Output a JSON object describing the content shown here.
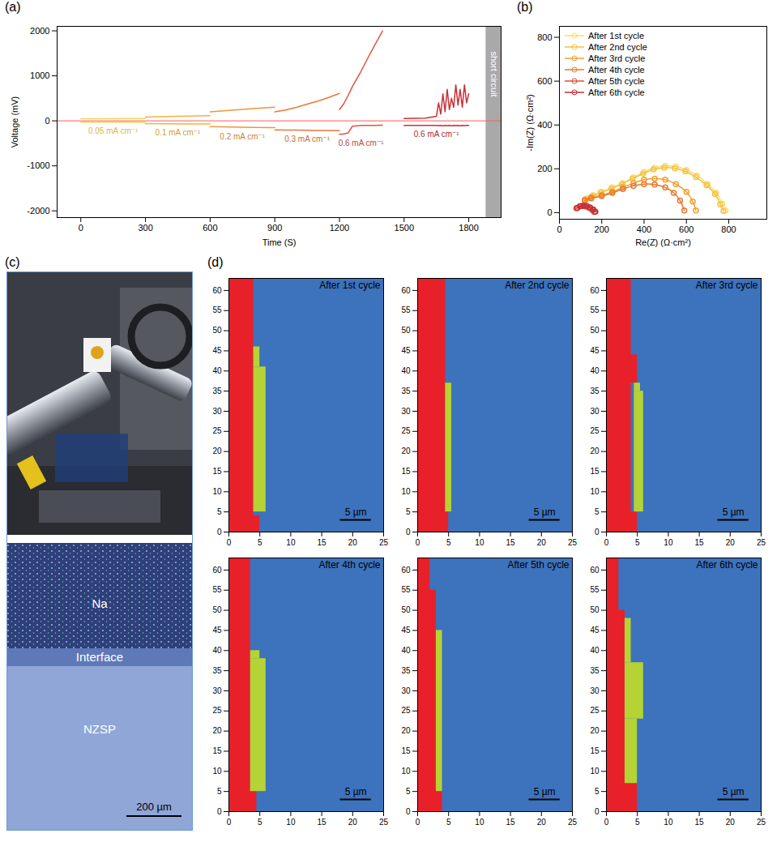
{
  "chart_data": [
    {
      "panel": "(a)",
      "type": "line",
      "x_label": "Time (S)",
      "y_label": "Voltage (mV)",
      "xlim": [
        -110,
        1950
      ],
      "ylim": [
        -2150,
        2100
      ],
      "xticks": [
        0,
        300,
        600,
        900,
        1200,
        1500,
        1800
      ],
      "yticks": [
        -2000,
        -1000,
        0,
        1000,
        2000
      ],
      "reference_lines": [
        {
          "y": 0,
          "color": "#ff5a5a"
        }
      ],
      "shaded_regions": [
        {
          "x1": 1880,
          "x2": 1950,
          "label": "short circuit",
          "color": "#a9a9a9"
        }
      ],
      "series": [
        {
          "name": "0.05 mA cm⁻¹",
          "color": "#f4d35e",
          "x": [
            0,
            100,
            200,
            300
          ],
          "values": [
            45,
            48,
            50,
            52
          ],
          "values_lower": [
            -28,
            -30,
            -30,
            -32
          ]
        },
        {
          "name": "0.1 mA cm⁻¹",
          "color": "#f2b441",
          "x": [
            300,
            400,
            500,
            600
          ],
          "values": [
            85,
            95,
            105,
            115
          ],
          "values_lower": [
            -60,
            -65,
            -68,
            -70
          ]
        },
        {
          "name": "0.2 mA cm⁻¹",
          "color": "#ee963a",
          "x": [
            600,
            700,
            800,
            900
          ],
          "values": [
            200,
            235,
            270,
            305
          ],
          "values_lower": [
            -130,
            -138,
            -145,
            -150
          ]
        },
        {
          "name": "0.3 mA cm⁻¹",
          "color": "#e9793a",
          "x": [
            900,
            950,
            1000,
            1050,
            1100,
            1150,
            1200
          ],
          "values": [
            200,
            240,
            300,
            370,
            440,
            520,
            610
          ],
          "values_lower": [
            -200,
            -205,
            -205,
            -210,
            -212,
            -215,
            -220
          ]
        },
        {
          "name": "0.6 mA cm⁻¹",
          "color": "#e0533a",
          "x": [
            1200,
            1220,
            1240,
            1260,
            1280,
            1300,
            1330,
            1360,
            1400
          ],
          "values": [
            250,
            380,
            560,
            760,
            930,
            1100,
            1380,
            1650,
            2000
          ],
          "values_lower": [
            -300,
            -290,
            -270,
            -120,
            -110,
            -100,
            -100,
            -100,
            -95
          ]
        },
        {
          "name": "0.6 mA cm⁻¹",
          "color": "#c9303a",
          "x": [
            1500,
            1550,
            1600,
            1650,
            1660,
            1670,
            1680,
            1690,
            1700,
            1710,
            1720,
            1730,
            1740,
            1750,
            1760,
            1770,
            1780,
            1790,
            1800
          ],
          "values": [
            50,
            55,
            60,
            100,
            400,
            150,
            600,
            200,
            700,
            250,
            500,
            300,
            800,
            350,
            700,
            300,
            800,
            400,
            600
          ],
          "values_lower": [
            -100,
            -100,
            -100,
            -100,
            -105,
            -100,
            -110,
            -100,
            -105,
            -100,
            -110,
            -100,
            -105,
            -100,
            -110,
            -100,
            -105,
            -100,
            -100
          ]
        }
      ]
    },
    {
      "panel": "(b)",
      "type": "scatter",
      "x_label": "Re(Z) (Ω·cm²)",
      "y_label": "-Im(Z) (Ω·cm²)",
      "xlim": [
        0,
        980
      ],
      "ylim": [
        -30,
        850
      ],
      "xticks": [
        0,
        200,
        400,
        600,
        800
      ],
      "yticks": [
        0,
        200,
        400,
        600,
        800
      ],
      "legend": "upper left",
      "marker": "circle",
      "line_style": "solid",
      "series": [
        {
          "name": "After 1st cycle",
          "color": "#f7dc6f",
          "x": [
            130,
            160,
            200,
            250,
            300,
            350,
            400,
            450,
            500,
            550,
            600,
            650,
            700,
            740,
            770,
            785
          ],
          "values": [
            65,
            80,
            95,
            115,
            135,
            160,
            185,
            205,
            213,
            210,
            195,
            170,
            130,
            90,
            40,
            10
          ]
        },
        {
          "name": "After 2nd cycle",
          "color": "#f5c242",
          "x": [
            125,
            155,
            195,
            245,
            295,
            345,
            395,
            445,
            495,
            545,
            595,
            645,
            695,
            735,
            760,
            775
          ],
          "values": [
            60,
            75,
            92,
            110,
            130,
            155,
            178,
            197,
            205,
            202,
            188,
            162,
            125,
            85,
            38,
            8
          ]
        },
        {
          "name": "After 3rd cycle",
          "color": "#f0a030",
          "x": [
            120,
            150,
            200,
            250,
            300,
            350,
            400,
            450,
            500,
            550,
            600,
            630,
            645
          ],
          "values": [
            60,
            70,
            80,
            95,
            115,
            135,
            150,
            155,
            150,
            130,
            95,
            50,
            10
          ]
        },
        {
          "name": "After 4th cycle",
          "color": "#e87a30",
          "x": [
            120,
            150,
            200,
            250,
            300,
            350,
            400,
            450,
            500,
            540,
            570,
            590
          ],
          "values": [
            55,
            65,
            75,
            90,
            108,
            122,
            130,
            128,
            115,
            90,
            55,
            10
          ]
        },
        {
          "name": "After 5th cycle",
          "color": "#d9503a",
          "x": [
            80,
            95,
            110,
            125,
            140,
            155,
            165
          ],
          "values": [
            20,
            28,
            30,
            28,
            22,
            12,
            3
          ]
        },
        {
          "name": "After 6th cycle",
          "color": "#c0303a",
          "x": [
            85,
            100,
            115,
            130,
            145,
            160,
            170
          ],
          "values": [
            22,
            30,
            32,
            30,
            24,
            14,
            4
          ]
        }
      ]
    },
    {
      "panel": "(c)",
      "type": "image",
      "labels": [
        "Na",
        "Interface",
        "NZSP"
      ],
      "scale_bar": "200 µm"
    },
    {
      "panel": "(d)",
      "type": "map",
      "xlim": [
        0,
        25
      ],
      "ylim": [
        0,
        63
      ],
      "xticks": [
        0,
        5,
        10,
        15,
        20,
        25
      ],
      "yticks": [
        0,
        5,
        10,
        15,
        20,
        25,
        30,
        35,
        40,
        45,
        50,
        55,
        60
      ],
      "scale_bar": {
        "label": "5 µm",
        "length": 5
      },
      "maps": [
        {
          "title": "After 1st cycle",
          "rects": [
            {
              "x1": 0,
              "x2": 25,
              "y1": 0,
              "y2": 63,
              "color": "#3d72bc"
            },
            {
              "x1": 0,
              "x2": 4,
              "y1": 0,
              "y2": 63,
              "color": "#e8202a"
            },
            {
              "x1": 0,
              "x2": 5,
              "y1": 0,
              "y2": 4,
              "color": "#e8202a"
            },
            {
              "x1": 4,
              "x2": 5,
              "y1": 41,
              "y2": 46,
              "color": "#b5d334"
            },
            {
              "x1": 4,
              "x2": 6,
              "y1": 5,
              "y2": 41,
              "color": "#b5d334"
            }
          ]
        },
        {
          "title": "After 2nd cycle",
          "rects": [
            {
              "x1": 0,
              "x2": 25,
              "y1": 0,
              "y2": 63,
              "color": "#3d72bc"
            },
            {
              "x1": 0,
              "x2": 4.5,
              "y1": 0,
              "y2": 63,
              "color": "#e8202a"
            },
            {
              "x1": 0,
              "x2": 5,
              "y1": 0,
              "y2": 5,
              "color": "#e8202a"
            },
            {
              "x1": 4.5,
              "x2": 5.5,
              "y1": 5,
              "y2": 37,
              "color": "#b5d334"
            }
          ]
        },
        {
          "title": "After 3rd cycle",
          "rects": [
            {
              "x1": 0,
              "x2": 25,
              "y1": 0,
              "y2": 63,
              "color": "#3d72bc"
            },
            {
              "x1": 0,
              "x2": 4,
              "y1": 0,
              "y2": 63,
              "color": "#e8202a"
            },
            {
              "x1": 0,
              "x2": 5,
              "y1": 37,
              "y2": 44,
              "color": "#e8202a"
            },
            {
              "x1": 0,
              "x2": 5,
              "y1": 0,
              "y2": 5,
              "color": "#e8202a"
            },
            {
              "x1": 4.5,
              "x2": 5.5,
              "y1": 35,
              "y2": 37,
              "color": "#b5d334"
            },
            {
              "x1": 4.5,
              "x2": 6,
              "y1": 5,
              "y2": 35,
              "color": "#b5d334"
            }
          ]
        },
        {
          "title": "After 4th cycle",
          "rects": [
            {
              "x1": 0,
              "x2": 25,
              "y1": 0,
              "y2": 63,
              "color": "#3d72bc"
            },
            {
              "x1": 0,
              "x2": 3.5,
              "y1": 0,
              "y2": 63,
              "color": "#e8202a"
            },
            {
              "x1": 0,
              "x2": 4.5,
              "y1": 0,
              "y2": 5,
              "color": "#e8202a"
            },
            {
              "x1": 3.5,
              "x2": 5,
              "y1": 38,
              "y2": 40,
              "color": "#b5d334"
            },
            {
              "x1": 3.5,
              "x2": 6,
              "y1": 5,
              "y2": 38,
              "color": "#b5d334"
            }
          ]
        },
        {
          "title": "After 5th cycle",
          "rects": [
            {
              "x1": 0,
              "x2": 25,
              "y1": 0,
              "y2": 63,
              "color": "#3d72bc"
            },
            {
              "x1": 0,
              "x2": 2,
              "y1": 0,
              "y2": 63,
              "color": "#e8202a"
            },
            {
              "x1": 0,
              "x2": 3,
              "y1": 0,
              "y2": 55,
              "color": "#e8202a"
            },
            {
              "x1": 0,
              "x2": 4,
              "y1": 0,
              "y2": 5,
              "color": "#e8202a"
            },
            {
              "x1": 3,
              "x2": 4,
              "y1": 5,
              "y2": 45,
              "color": "#b5d334"
            }
          ]
        },
        {
          "title": "After 6th cycle",
          "rects": [
            {
              "x1": 0,
              "x2": 25,
              "y1": 0,
              "y2": 63,
              "color": "#3d72bc"
            },
            {
              "x1": 0,
              "x2": 2,
              "y1": 0,
              "y2": 63,
              "color": "#e8202a"
            },
            {
              "x1": 0,
              "x2": 3,
              "y1": 7,
              "y2": 50,
              "color": "#e8202a"
            },
            {
              "x1": 0,
              "x2": 5,
              "y1": 0,
              "y2": 7,
              "color": "#e8202a"
            },
            {
              "x1": 3,
              "x2": 4,
              "y1": 37,
              "y2": 48,
              "color": "#b5d334"
            },
            {
              "x1": 3,
              "x2": 6,
              "y1": 23,
              "y2": 37,
              "color": "#b5d334"
            },
            {
              "x1": 3,
              "x2": 5,
              "y1": 7,
              "y2": 23,
              "color": "#b5d334"
            }
          ]
        }
      ]
    }
  ]
}
